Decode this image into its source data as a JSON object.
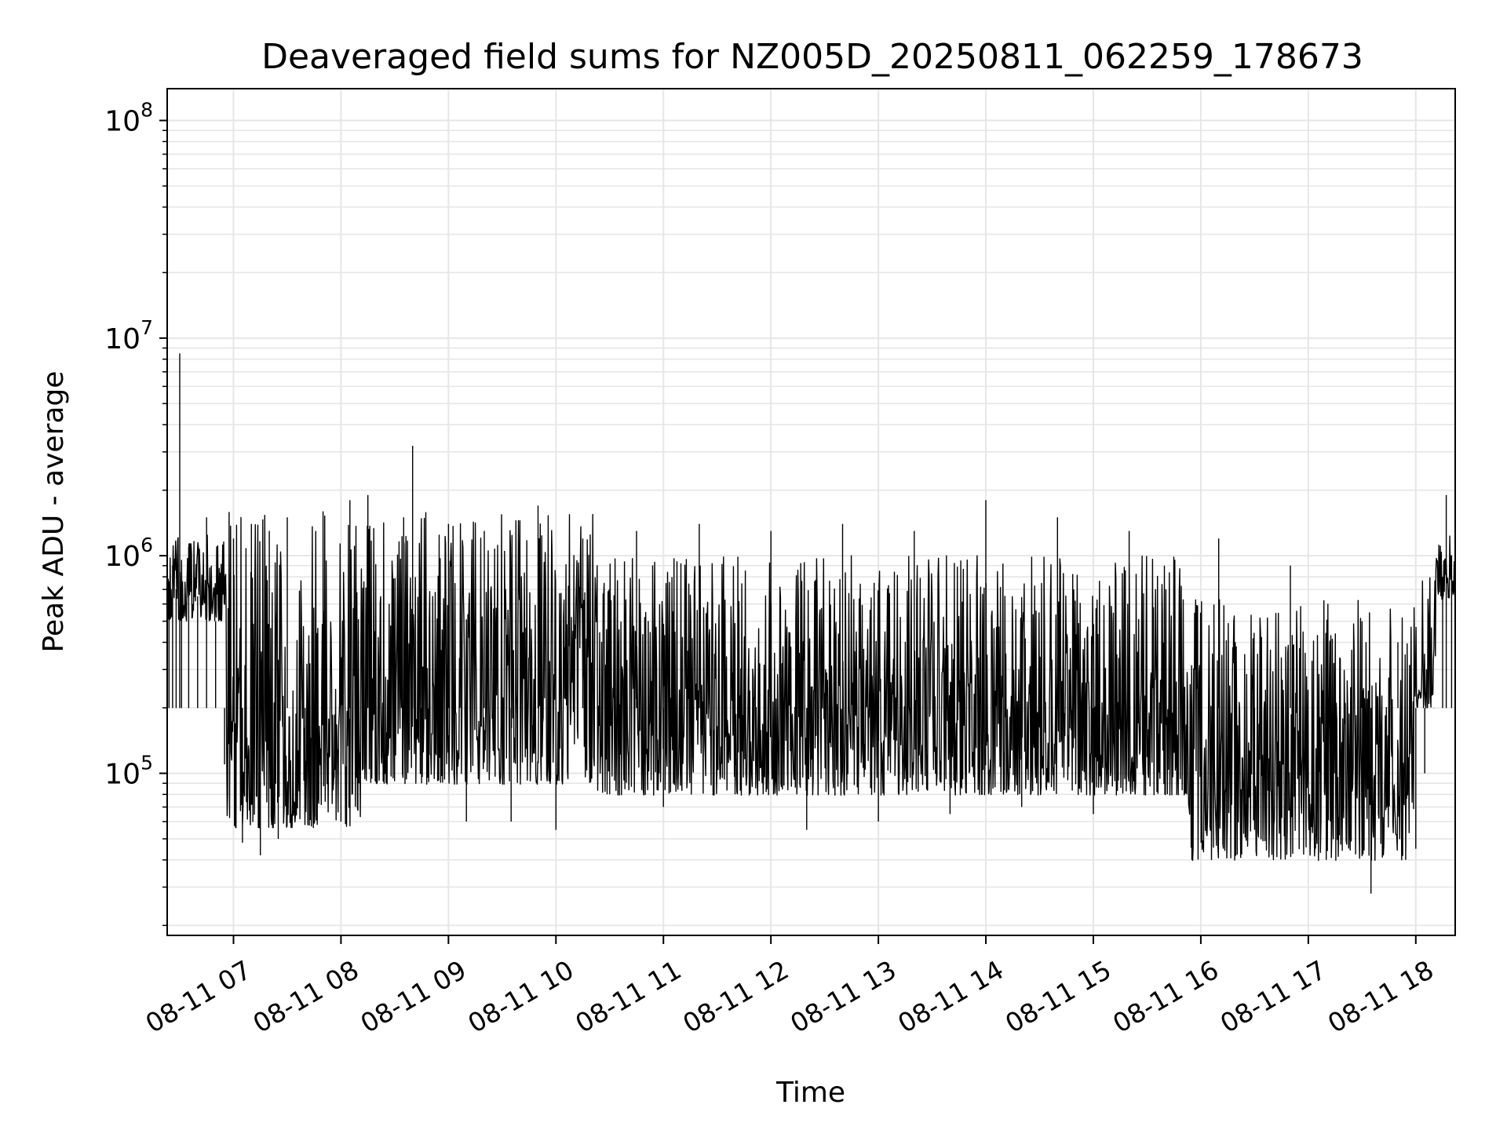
{
  "chart_data": {
    "type": "line",
    "title": "Deaveraged field sums for NZ005D_20250811_062259_178673",
    "xlabel": "Time",
    "ylabel": "Peak ADU - average",
    "yscale": "log",
    "ylim": [
      18000,
      140000000
    ],
    "xlim": [
      "2025-08-11 06:22:59",
      "2025-08-11 18:22:00"
    ],
    "grid": true,
    "line_color": "#000000",
    "grid_color": "#e6e6e6",
    "x_ticks": [
      {
        "time": "2025-08-11 07:00",
        "label": "08-11 07"
      },
      {
        "time": "2025-08-11 08:00",
        "label": "08-11 08"
      },
      {
        "time": "2025-08-11 09:00",
        "label": "08-11 09"
      },
      {
        "time": "2025-08-11 10:00",
        "label": "08-11 10"
      },
      {
        "time": "2025-08-11 11:00",
        "label": "08-11 11"
      },
      {
        "time": "2025-08-11 12:00",
        "label": "08-11 12"
      },
      {
        "time": "2025-08-11 13:00",
        "label": "08-11 13"
      },
      {
        "time": "2025-08-11 14:00",
        "label": "08-11 14"
      },
      {
        "time": "2025-08-11 15:00",
        "label": "08-11 15"
      },
      {
        "time": "2025-08-11 16:00",
        "label": "08-11 16"
      },
      {
        "time": "2025-08-11 17:00",
        "label": "08-11 17"
      },
      {
        "time": "2025-08-11 18:00",
        "label": "08-11 18"
      }
    ],
    "y_ticks": [
      {
        "value": 100000,
        "base": "10",
        "exp": "5"
      },
      {
        "value": 1000000,
        "base": "10",
        "exp": "6"
      },
      {
        "value": 10000000,
        "base": "10",
        "exp": "7"
      },
      {
        "value": 100000000,
        "base": "10",
        "exp": "8"
      }
    ],
    "series": [
      {
        "points": [
          [
            "2025-08-11 06:23",
            350000
          ],
          [
            "2025-08-11 06:24",
            600000
          ],
          [
            "2025-08-11 06:26",
            900000
          ],
          [
            "2025-08-11 06:28",
            700000
          ],
          [
            "2025-08-11 06:30",
            8500000
          ],
          [
            "2025-08-11 06:31",
            800000
          ],
          [
            "2025-08-11 06:35",
            1100000
          ],
          [
            "2025-08-11 06:40",
            650000
          ],
          [
            "2025-08-11 06:45",
            1500000
          ],
          [
            "2025-08-11 06:50",
            500000
          ],
          [
            "2025-08-11 06:55",
            110000
          ],
          [
            "2025-08-11 07:00",
            1200000
          ],
          [
            "2025-08-11 07:05",
            48000
          ],
          [
            "2025-08-11 07:10",
            1400000
          ],
          [
            "2025-08-11 07:15",
            42000
          ],
          [
            "2025-08-11 07:20",
            1300000
          ],
          [
            "2025-08-11 07:25",
            50000
          ],
          [
            "2025-08-11 07:30",
            1500000
          ],
          [
            "2025-08-11 07:40",
            70000
          ],
          [
            "2025-08-11 07:50",
            1600000
          ],
          [
            "2025-08-11 08:00",
            60000
          ],
          [
            "2025-08-11 08:05",
            1800000
          ],
          [
            "2025-08-11 08:10",
            90000
          ],
          [
            "2025-08-11 08:15",
            1900000
          ],
          [
            "2025-08-11 08:25",
            120000
          ],
          [
            "2025-08-11 08:35",
            1500000
          ],
          [
            "2025-08-11 08:40",
            3200000
          ],
          [
            "2025-08-11 08:45",
            90000
          ],
          [
            "2025-08-11 09:00",
            1400000
          ],
          [
            "2025-08-11 09:10",
            60000
          ],
          [
            "2025-08-11 09:20",
            1300000
          ],
          [
            "2025-08-11 09:35",
            60000
          ],
          [
            "2025-08-11 09:50",
            1700000
          ],
          [
            "2025-08-11 10:00",
            55000
          ],
          [
            "2025-08-11 10:15",
            1200000
          ],
          [
            "2025-08-11 10:30",
            80000
          ],
          [
            "2025-08-11 10:45",
            1300000
          ],
          [
            "2025-08-11 11:00",
            70000
          ],
          [
            "2025-08-11 11:20",
            1400000
          ],
          [
            "2025-08-11 11:40",
            80000
          ],
          [
            "2025-08-11 12:00",
            1300000
          ],
          [
            "2025-08-11 12:20",
            55000
          ],
          [
            "2025-08-11 12:40",
            1400000
          ],
          [
            "2025-08-11 13:00",
            60000
          ],
          [
            "2025-08-11 13:20",
            1300000
          ],
          [
            "2025-08-11 13:40",
            65000
          ],
          [
            "2025-08-11 14:00",
            1800000
          ],
          [
            "2025-08-11 14:20",
            70000
          ],
          [
            "2025-08-11 14:40",
            1500000
          ],
          [
            "2025-08-11 15:00",
            65000
          ],
          [
            "2025-08-11 15:20",
            1300000
          ],
          [
            "2025-08-11 15:40",
            80000
          ],
          [
            "2025-08-11 15:55",
            40000
          ],
          [
            "2025-08-11 16:10",
            1200000
          ],
          [
            "2025-08-11 16:30",
            55000
          ],
          [
            "2025-08-11 16:50",
            900000
          ],
          [
            "2025-08-11 17:10",
            40000
          ],
          [
            "2025-08-11 17:30",
            500000
          ],
          [
            "2025-08-11 17:35",
            28000
          ],
          [
            "2025-08-11 17:50",
            400000
          ],
          [
            "2025-08-11 18:00",
            45000
          ],
          [
            "2025-08-11 18:05",
            100000
          ],
          [
            "2025-08-11 18:10",
            200000
          ],
          [
            "2025-08-11 18:15",
            800000
          ],
          [
            "2025-08-11 18:17",
            1900000
          ],
          [
            "2025-08-11 18:20",
            1000000
          ],
          [
            "2025-08-11 18:22",
            850000
          ]
        ]
      }
    ]
  }
}
